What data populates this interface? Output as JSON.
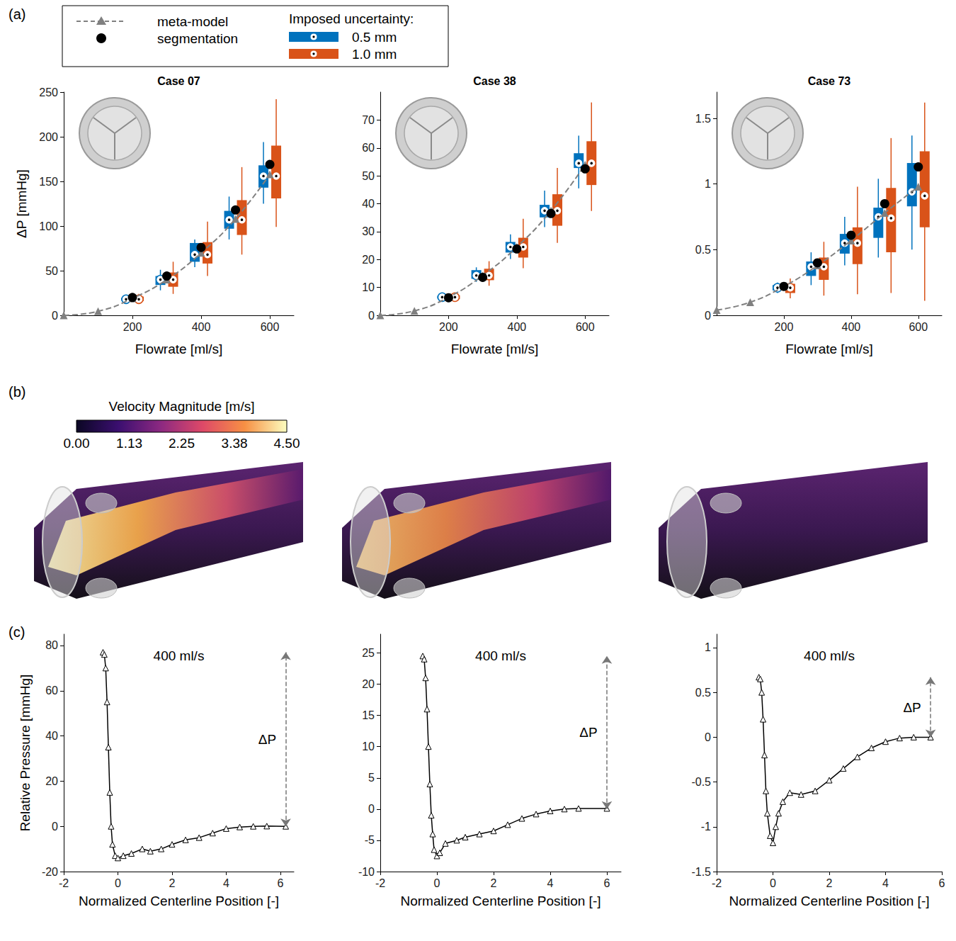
{
  "panel_labels": [
    "(a)",
    "(b)",
    "(c)"
  ],
  "legend_title": "Imposed uncertainty:",
  "colorbar": {
    "title": "Velocity Magnitude [m/s]",
    "range": [
      0,
      4.5
    ],
    "ticks": [
      {
        "value": 0,
        "label": "0.00"
      },
      1.13,
      2.25,
      3.38,
      {
        "value": 4.5,
        "label": "4.50"
      }
    ]
  },
  "chart_data": [
    {
      "type": "box",
      "title": "Case 07",
      "xlabel": "Flowrate [ml/s]",
      "ylabel": "ΔP [mmHg]",
      "xlim": [
        0,
        670
      ],
      "xticks": [
        200,
        400,
        600
      ],
      "ylim": [
        0,
        250
      ],
      "yticks": [
        0,
        50,
        100,
        150,
        200,
        250
      ],
      "x": [
        200,
        300,
        400,
        500,
        600
      ],
      "series": [
        {
          "name": "0.5 mm",
          "type": "boxplot",
          "color": "#0072bd",
          "values": [
            [
              15,
              16.5,
              18,
              19.5,
              21
            ],
            [
              28,
              34,
              40,
              44,
              51
            ],
            [
              54,
              60,
              68,
              81,
              85
            ],
            [
              85,
              97,
              107,
              117,
              133
            ],
            [
              125,
              143,
              156,
              168,
              194
            ]
          ]
        },
        {
          "name": "1.0 mm",
          "type": "boxplot",
          "color": "#d95319",
          "values": [
            [
              14,
              16,
              18,
              21,
              24
            ],
            [
              24,
              32,
              40,
              48,
              60
            ],
            [
              44,
              58,
              68,
              82,
              105
            ],
            [
              68,
              90,
              107,
              129,
              166
            ],
            [
              99,
              131,
              156,
              190,
              242
            ]
          ]
        },
        {
          "name": "meta-model",
          "type": "line",
          "color": "#808080",
          "line_style": "dashed",
          "marker": "triangle",
          "x": [
            0,
            100,
            200,
            300,
            400,
            500,
            600
          ],
          "values": [
            0,
            4.5,
            19,
            40,
            70,
            108,
            158
          ]
        },
        {
          "name": "segmentation",
          "type": "scatter",
          "color": "#000000",
          "marker": "circle",
          "values": [
            20,
            44,
            76,
            118,
            169
          ]
        }
      ]
    },
    {
      "type": "box",
      "title": "Case 38",
      "xlabel": "Flowrate [ml/s]",
      "xlim": [
        0,
        670
      ],
      "xticks": [
        200,
        400,
        600
      ],
      "ylim": [
        0,
        80
      ],
      "yticks": [
        0,
        10,
        20,
        30,
        40,
        50,
        60,
        70
      ],
      "x": [
        200,
        300,
        400,
        500,
        600
      ],
      "series": [
        {
          "name": "0.5 mm",
          "type": "boxplot",
          "color": "#0072bd",
          "values": [
            [
              5.5,
              6,
              6.5,
              7,
              7.5
            ],
            [
              12,
              13.1,
              14.3,
              16.2,
              17.2
            ],
            [
              20.2,
              22.5,
              24.5,
              26.3,
              29
            ],
            [
              31.6,
              35.1,
              37.5,
              39.6,
              44.7
            ],
            [
              45.5,
              52.8,
              54.5,
              58.1,
              64.4
            ]
          ]
        },
        {
          "name": "1.0 mm",
          "type": "boxplot",
          "color": "#d95319",
          "values": [
            [
              5,
              5.8,
              6.5,
              7.2,
              8
            ],
            [
              10.6,
              12.6,
              14.3,
              16.7,
              19.4
            ],
            [
              16.9,
              20.7,
              24.5,
              27.8,
              34.6
            ],
            [
              26,
              32.1,
              37.5,
              43.4,
              52.8
            ],
            [
              37.4,
              46.7,
              54.5,
              62.4,
              76.3
            ]
          ]
        },
        {
          "name": "meta-model",
          "type": "line",
          "color": "#808080",
          "line_style": "dashed",
          "marker": "triangle",
          "x": [
            0,
            100,
            200,
            300,
            400,
            500,
            600
          ],
          "values": [
            0,
            1.6,
            6.5,
            14.3,
            24.5,
            37.5,
            54
          ]
        },
        {
          "name": "segmentation",
          "type": "scatter",
          "color": "#000000",
          "marker": "circle",
          "values": [
            6.3,
            13.6,
            23.8,
            36.5,
            52.5
          ]
        }
      ]
    },
    {
      "type": "box",
      "title": "Case 73",
      "xlabel": "Flowrate [ml/s]",
      "xlim": [
        0,
        670
      ],
      "xticks": [
        200,
        400,
        600
      ],
      "ylim": [
        0,
        1.7
      ],
      "yticks": [
        0,
        0.5,
        1,
        1.5
      ],
      "x": [
        200,
        300,
        400,
        500,
        600
      ],
      "series": [
        {
          "name": "0.5 mm",
          "type": "boxplot",
          "color": "#0072bd",
          "values": [
            [
              0.17,
              0.19,
              0.21,
              0.23,
              0.25
            ],
            [
              0.23,
              0.3,
              0.37,
              0.41,
              0.48
            ],
            [
              0.38,
              0.47,
              0.55,
              0.62,
              0.75
            ],
            [
              0.44,
              0.59,
              0.75,
              0.82,
              1.04
            ],
            [
              0.5,
              0.83,
              0.94,
              1.16,
              1.37
            ]
          ]
        },
        {
          "name": "1.0 mm",
          "type": "boxplot",
          "color": "#d95319",
          "values": [
            [
              0.13,
              0.17,
              0.21,
              0.24,
              0.28
            ],
            [
              0.15,
              0.27,
              0.37,
              0.44,
              0.56
            ],
            [
              0.16,
              0.39,
              0.55,
              0.67,
              0.98
            ],
            [
              0.17,
              0.48,
              0.74,
              0.97,
              1.35
            ],
            [
              0.11,
              0.67,
              0.91,
              1.25,
              1.62
            ]
          ]
        },
        {
          "name": "meta-model",
          "type": "line",
          "color": "#808080",
          "line_style": "dashed",
          "marker": "triangle",
          "x": [
            0,
            100,
            200,
            300,
            400,
            500,
            600
          ],
          "values": [
            0.04,
            0.1,
            0.22,
            0.38,
            0.57,
            0.78,
            0.98
          ]
        },
        {
          "name": "segmentation",
          "type": "scatter",
          "color": "#000000",
          "marker": "circle",
          "values": [
            0.22,
            0.4,
            0.61,
            0.85,
            1.13
          ]
        }
      ]
    },
    {
      "type": "line",
      "title": "400 ml/s",
      "xlabel": "Normalized Centerline Position [-]",
      "ylabel": "Relative Pressure [mmHg]",
      "xlim": [
        -2,
        6.5
      ],
      "xticks": [
        -2,
        0,
        2,
        4,
        6
      ],
      "ylim": [
        -20,
        85
      ],
      "yticks": [
        -20,
        0,
        20,
        40,
        60,
        80
      ],
      "x": [
        -0.55,
        -0.5,
        -0.45,
        -0.4,
        -0.35,
        -0.3,
        -0.25,
        -0.2,
        -0.1,
        0,
        0.2,
        0.5,
        0.9,
        1.2,
        1.6,
        2,
        2.5,
        3,
        3.5,
        4,
        4.5,
        5,
        5.5,
        6.2
      ],
      "series": [
        {
          "color": "#000000",
          "marker": "triangle",
          "values": [
            77,
            76,
            70,
            55,
            35,
            15,
            0,
            -8,
            -13,
            -14,
            -13,
            -12,
            -10,
            -11,
            -10,
            -8,
            -6,
            -5,
            -3,
            -1,
            -0.3,
            0,
            0.1,
            0
          ]
        }
      ],
      "annotations": [
        {
          "text": "ΔP",
          "x": 6.2,
          "y": [
            0,
            77
          ]
        }
      ]
    },
    {
      "type": "line",
      "title": "400 ml/s",
      "xlabel": "Normalized Centerline Position [-]",
      "xlim": [
        -2,
        6.5
      ],
      "xticks": [
        -2,
        0,
        2,
        4,
        6
      ],
      "ylim": [
        -10,
        28
      ],
      "yticks": [
        -10,
        -5,
        0,
        5,
        10,
        15,
        20,
        25
      ],
      "x": [
        -0.5,
        -0.45,
        -0.4,
        -0.35,
        -0.3,
        -0.25,
        -0.2,
        -0.15,
        -0.1,
        0,
        0.1,
        0.3,
        0.7,
        1,
        1.5,
        2,
        2.5,
        3,
        3.5,
        4,
        4.5,
        5,
        6
      ],
      "series": [
        {
          "color": "#000000",
          "marker": "triangle",
          "values": [
            24.5,
            24,
            21,
            16,
            10,
            4,
            -1,
            -4,
            -6.5,
            -7.5,
            -7,
            -5.5,
            -5,
            -4.5,
            -4,
            -3.5,
            -2.5,
            -1.5,
            -0.8,
            -0.3,
            0,
            0.1,
            0.1
          ]
        }
      ],
      "annotations": [
        {
          "text": "ΔP",
          "x": 6,
          "y": [
            0,
            24.5
          ]
        }
      ]
    },
    {
      "type": "line",
      "title": "400 ml/s",
      "xlabel": "Normalized Centerline Position [-]",
      "xlim": [
        -2,
        6
      ],
      "xticks": [
        -2,
        0,
        2,
        4,
        6
      ],
      "ylim": [
        -1.5,
        1.15
      ],
      "yticks": [
        -1.5,
        -1,
        -0.5,
        0,
        0.5,
        1
      ],
      "x": [
        -0.5,
        -0.45,
        -0.4,
        -0.35,
        -0.3,
        -0.25,
        -0.2,
        -0.1,
        0,
        0.1,
        0.2,
        0.35,
        0.6,
        1,
        1.5,
        2,
        2.5,
        3,
        3.5,
        4,
        4.5,
        5,
        5.6
      ],
      "series": [
        {
          "color": "#000000",
          "marker": "triangle",
          "values": [
            0.67,
            0.65,
            0.5,
            0.2,
            -0.2,
            -0.6,
            -0.85,
            -1.1,
            -1.18,
            -1.0,
            -0.85,
            -0.72,
            -0.62,
            -0.64,
            -0.6,
            -0.48,
            -0.35,
            -0.22,
            -0.12,
            -0.05,
            -0.01,
            0,
            0
          ]
        }
      ],
      "annotations": [
        {
          "text": "ΔP",
          "x": 5.6,
          "y": [
            0,
            0.67
          ]
        }
      ]
    }
  ]
}
